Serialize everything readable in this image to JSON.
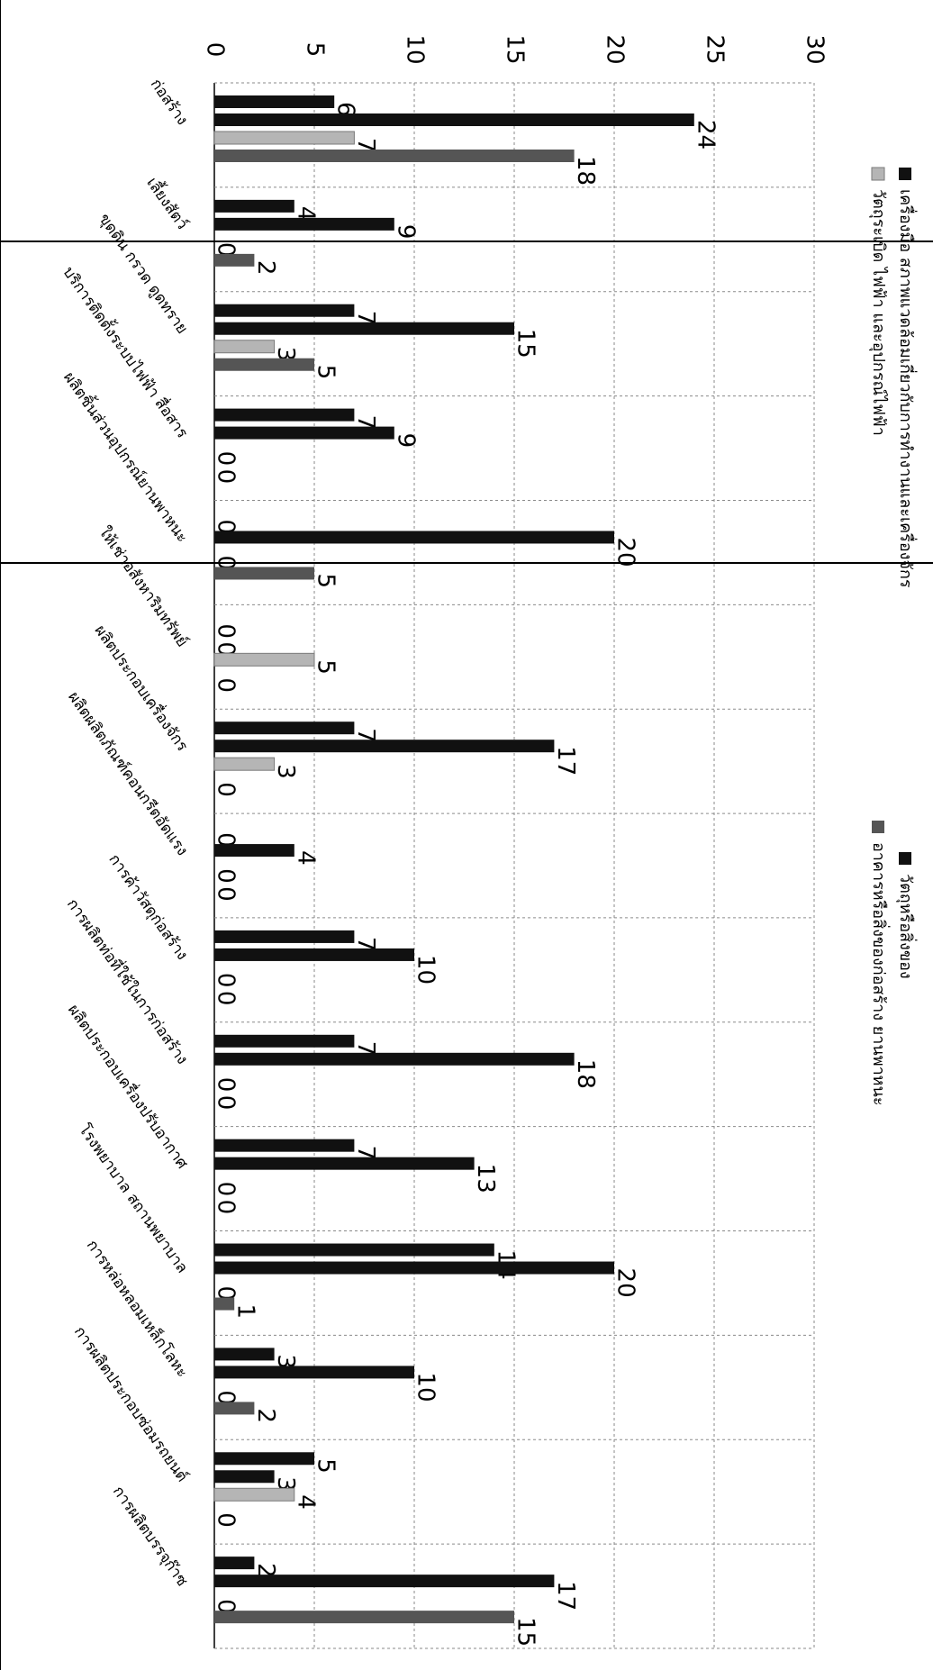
{
  "chart_data": {
    "type": "bar",
    "orientation": "horizontal",
    "title": "",
    "xlabel": "",
    "ylabel": "",
    "xlim": [
      0,
      30
    ],
    "ticks": [
      "0",
      "5",
      "10",
      "15",
      "20",
      "25",
      "30"
    ],
    "grid": true,
    "legend_position": "top",
    "categories": [
      "ก่อสร้าง",
      "เลี้ยงสัตว์",
      "ขุดดิน กรวด ดูดทราย",
      "บริการติดตั้งระบบไฟฟ้า สื่อสาร",
      "ผลิตชิ้นส่วนอุปกรณ์ยานพาหนะ",
      "ให้เช่าอสังหาริมทรัพย์",
      "ผลิตประกอบเครื่องจักร",
      "ผลิตผลิตภัณฑ์คอนกรีตอัดแรง",
      "การค้าวัสดุก่อสร้าง",
      "การผลิตท่อที่ใช้ในการก่อสร้าง",
      "ผลิตประกอบเครื่องปรับอากาศ",
      "โรงพยาบาล สถานพยาบาล",
      "การหล่อหลอมเหล็กโลหะ",
      "การผลิตประกอบซ่อมรถยนต์",
      "การผลิตบรรจุก๊าซ"
    ],
    "series": [
      {
        "name": "เครื่องมือ สภาพแวดล้อมเกี่ยวกับการทำงานและเครื่องจักร",
        "color": "#111111",
        "values": [
          6,
          4,
          7,
          7,
          0,
          0,
          7,
          0,
          7,
          7,
          7,
          14,
          3,
          5,
          2
        ]
      },
      {
        "name": "วัตถุหรือสิ่งของ",
        "color": "#111111",
        "values": [
          24,
          9,
          15,
          9,
          20,
          0,
          17,
          4,
          10,
          18,
          13,
          20,
          10,
          3,
          17
        ]
      },
      {
        "name": "วัตถุระเบิด ไฟฟ้า และอุปกรณ์ไฟฟ้า",
        "color": "#b5b5b5",
        "values": [
          7,
          0,
          3,
          0,
          0,
          5,
          3,
          0,
          0,
          0,
          0,
          0,
          0,
          4,
          0
        ]
      },
      {
        "name": "อาคารหรือสิ่งของก่อสร้าง ยานพาหนะ",
        "color": "#555555",
        "values": [
          18,
          2,
          5,
          0,
          5,
          0,
          0,
          0,
          0,
          0,
          0,
          1,
          2,
          0,
          15
        ]
      }
    ],
    "data_labels": [
      [
        "6",
        "24",
        "7",
        "18"
      ],
      [
        "4",
        "9",
        "0",
        "2"
      ],
      [
        "7",
        "15",
        "3",
        "5"
      ],
      [
        "7",
        "9",
        "0",
        "0"
      ],
      [
        "0",
        "20",
        "0",
        "5"
      ],
      [
        "0",
        "0",
        "5",
        "0"
      ],
      [
        "7",
        "17",
        "3",
        "0"
      ],
      [
        "0",
        "4",
        "0",
        "0"
      ],
      [
        "7",
        "10",
        "0",
        "0"
      ],
      [
        "7",
        "18",
        "0",
        "0"
      ],
      [
        "7",
        "13",
        "0",
        "0"
      ],
      [
        "14",
        "20",
        "0",
        "1"
      ],
      [
        "3",
        "10",
        "0",
        "2"
      ],
      [
        "5",
        "3",
        "4",
        "0"
      ],
      [
        "2",
        "17",
        "0",
        "15"
      ]
    ]
  }
}
